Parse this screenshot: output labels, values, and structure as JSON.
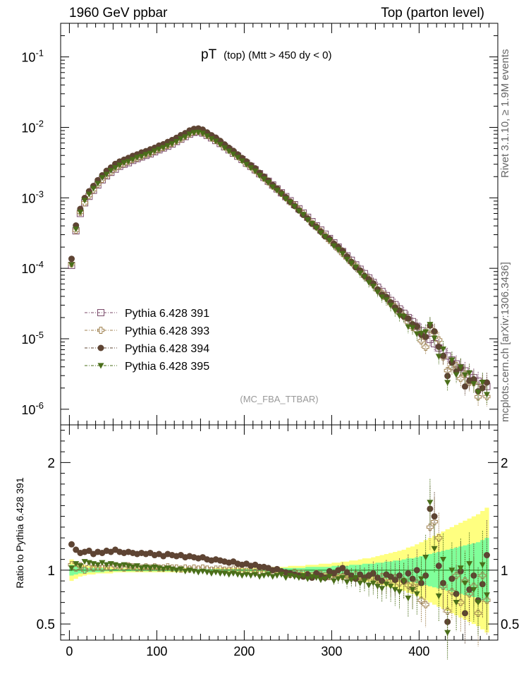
{
  "header": {
    "left": "1960 GeV ppbar",
    "right": "Top (parton level)"
  },
  "side": {
    "rivet": "Rivet 3.1.10, ≥ 1.9M events",
    "mcplots": "mcplots.cern.ch [arXiv:1306.3436]"
  },
  "chart_data": [
    {
      "type": "scatter",
      "panel": "main",
      "title_main": "pT",
      "title_sub": "(top) (Mtt > 450 dy < 0)",
      "watermark": "(MC_FBA_TTBAR)",
      "yscale": "log",
      "xlim": [
        -10,
        490
      ],
      "ylim": [
        6e-07,
        0.3
      ],
      "ytick_labels": [
        "10^-6",
        "10^-5",
        "10^-4",
        "10^-3",
        "10^-2",
        "10^-1"
      ],
      "legend_position": "bottom-left",
      "series": [
        {
          "name": "Pythia 6.428 391",
          "color": "#7a4a6a",
          "marker": "open-square"
        },
        {
          "name": "Pythia 6.428 393",
          "color": "#a08250",
          "marker": "open-cross"
        },
        {
          "name": "Pythia 6.428 394",
          "color": "#5e4433",
          "marker": "filled-circle"
        },
        {
          "name": "Pythia 6.428 395",
          "color": "#4a6e1a",
          "marker": "filled-triangle-down"
        }
      ],
      "x": [
        2.5,
        7.5,
        12.5,
        17.5,
        22.5,
        27.5,
        32.5,
        37.5,
        42.5,
        47.5,
        52.5,
        57.5,
        62.5,
        67.5,
        72.5,
        77.5,
        82.5,
        87.5,
        92.5,
        97.5,
        102.5,
        107.5,
        112.5,
        117.5,
        122.5,
        127.5,
        132.5,
        137.5,
        142.5,
        147.5,
        152.5,
        157.5,
        162.5,
        167.5,
        172.5,
        177.5,
        182.5,
        187.5,
        192.5,
        197.5,
        202.5,
        207.5,
        212.5,
        217.5,
        222.5,
        227.5,
        232.5,
        237.5,
        242.5,
        247.5,
        252.5,
        257.5,
        262.5,
        267.5,
        272.5,
        277.5,
        282.5,
        287.5,
        292.5,
        297.5,
        302.5,
        307.5,
        312.5,
        317.5,
        322.5,
        327.5,
        332.5,
        337.5,
        342.5,
        347.5,
        352.5,
        357.5,
        362.5,
        367.5,
        372.5,
        377.5,
        382.5,
        387.5,
        392.5,
        397.5,
        402.5,
        407.5,
        412.5,
        417.5,
        422.5,
        427.5,
        432.5,
        437.5,
        442.5,
        447.5,
        452.5,
        457.5,
        462.5,
        467.5,
        472.5,
        477.5
      ],
      "y_ref": [
        0.00011,
        0.00034,
        0.0006,
        0.00085,
        0.00105,
        0.00128,
        0.00152,
        0.0018,
        0.00205,
        0.0023,
        0.00255,
        0.0028,
        0.003,
        0.00315,
        0.0034,
        0.0036,
        0.0038,
        0.004,
        0.0042,
        0.0045,
        0.0048,
        0.0051,
        0.0054,
        0.0058,
        0.0063,
        0.0068,
        0.0074,
        0.008,
        0.0085,
        0.0087,
        0.0083,
        0.0077,
        0.0071,
        0.0065,
        0.0059,
        0.0053,
        0.0048,
        0.0043,
        0.0039,
        0.0035,
        0.0031,
        0.0028,
        0.0025,
        0.0022,
        0.00195,
        0.00172,
        0.00152,
        0.00134,
        0.00118,
        0.00104,
        0.00091,
        0.0008,
        0.0007,
        0.00061,
        0.00053,
        0.00046,
        0.0004,
        0.00035,
        0.000305,
        0.000265,
        0.00023,
        0.0002,
        0.000173,
        0.00015,
        0.00013,
        0.000112,
        9.7e-05,
        8.4e-05,
        7.3e-05,
        6.3e-05,
        5.4e-05,
        4.7e-05,
        4.1e-05,
        3.5e-05,
        3.05e-05,
        2.65e-05,
        2.3e-05,
        2e-05,
        1.75e-05,
        1.5e-05,
        1.3e-05,
        1.12e-05,
        9.8e-06,
        8.5e-06,
        7.4e-06,
        6.5e-06,
        5.7e-06,
        5e-06,
        4.4e-06,
        3.9e-06,
        3.5e-06,
        3.1e-06,
        2.8e-06,
        2.5e-06,
        2.3e-06,
        2.1e-06
      ],
      "comment_y": "main-panel series values = y_ref times each series' ratio"
    },
    {
      "type": "scatter",
      "panel": "ratio",
      "ylabel": "Ratio to Pythia 6.428 391",
      "xlim": [
        -10,
        490
      ],
      "ylim": [
        0.35,
        2.35
      ],
      "x_tick_labels": [
        "0",
        "100",
        "200",
        "300",
        "400"
      ],
      "y_tick_labels": [
        "0.5",
        "1",
        "2"
      ],
      "band_yellow_halfwidth": [
        0.1,
        0.08,
        0.06,
        0.05,
        0.04,
        0.04,
        0.03,
        0.03,
        0.03,
        0.03,
        0.02,
        0.02,
        0.02,
        0.02,
        0.02,
        0.02,
        0.02,
        0.02,
        0.02,
        0.02,
        0.02,
        0.02,
        0.02,
        0.02,
        0.02,
        0.02,
        0.02,
        0.01,
        0.01,
        0.01,
        0.01,
        0.01,
        0.01,
        0.02,
        0.02,
        0.02,
        0.02,
        0.02,
        0.02,
        0.02,
        0.02,
        0.02,
        0.02,
        0.02,
        0.02,
        0.03,
        0.03,
        0.03,
        0.03,
        0.03,
        0.04,
        0.04,
        0.04,
        0.04,
        0.05,
        0.05,
        0.05,
        0.06,
        0.06,
        0.06,
        0.07,
        0.07,
        0.08,
        0.08,
        0.09,
        0.09,
        0.1,
        0.11,
        0.11,
        0.12,
        0.13,
        0.14,
        0.15,
        0.16,
        0.17,
        0.18,
        0.19,
        0.21,
        0.22,
        0.24,
        0.26,
        0.28,
        0.3,
        0.32,
        0.34,
        0.36,
        0.38,
        0.4,
        0.42,
        0.44,
        0.46,
        0.48,
        0.5,
        0.52,
        0.55,
        0.58
      ],
      "band_green_halfwidth": [
        0.05,
        0.04,
        0.03,
        0.03,
        0.02,
        0.02,
        0.02,
        0.02,
        0.01,
        0.01,
        0.01,
        0.01,
        0.01,
        0.01,
        0.01,
        0.01,
        0.01,
        0.01,
        0.01,
        0.01,
        0.01,
        0.01,
        0.01,
        0.01,
        0.01,
        0.01,
        0.01,
        0.01,
        0.01,
        0.01,
        0.01,
        0.01,
        0.01,
        0.01,
        0.01,
        0.01,
        0.01,
        0.01,
        0.01,
        0.01,
        0.01,
        0.01,
        0.01,
        0.01,
        0.01,
        0.02,
        0.02,
        0.02,
        0.02,
        0.02,
        0.02,
        0.02,
        0.02,
        0.02,
        0.03,
        0.03,
        0.03,
        0.03,
        0.03,
        0.03,
        0.04,
        0.04,
        0.04,
        0.04,
        0.05,
        0.05,
        0.05,
        0.06,
        0.06,
        0.06,
        0.07,
        0.07,
        0.08,
        0.08,
        0.09,
        0.09,
        0.1,
        0.11,
        0.11,
        0.12,
        0.13,
        0.14,
        0.15,
        0.16,
        0.17,
        0.18,
        0.19,
        0.2,
        0.21,
        0.22,
        0.23,
        0.24,
        0.25,
        0.26,
        0.28,
        0.3
      ],
      "ratio_393": [
        1.05,
        1.02,
        1.04,
        1.0,
        1.03,
        1.02,
        1.03,
        1.02,
        1.03,
        1.02,
        1.04,
        1.03,
        1.02,
        1.04,
        1.03,
        1.02,
        1.02,
        1.03,
        1.02,
        1.03,
        1.02,
        1.02,
        1.03,
        1.02,
        1.02,
        1.01,
        1.02,
        1.01,
        1.02,
        1.01,
        1.02,
        1.01,
        1.0,
        1.01,
        1.01,
        1.0,
        1.0,
        1.01,
        1.0,
        1.0,
        0.99,
        0.99,
        0.98,
        0.99,
        0.98,
        0.98,
        0.97,
        0.99,
        0.98,
        0.97,
        0.96,
        0.98,
        0.97,
        0.97,
        0.96,
        0.95,
        0.97,
        0.96,
        0.95,
        0.94,
        0.96,
        0.95,
        0.94,
        0.95,
        0.93,
        0.96,
        0.94,
        0.92,
        0.95,
        0.93,
        0.91,
        0.94,
        0.92,
        0.9,
        0.93,
        0.88,
        0.9,
        0.86,
        0.83,
        0.88,
        0.72,
        0.68,
        1.4,
        1.45,
        1.3,
        0.85,
        0.62,
        0.8,
        0.95,
        0.7,
        0.9,
        0.78,
        0.85,
        0.6,
        0.95,
        0.72
      ],
      "ratio_394": [
        1.24,
        1.19,
        1.16,
        1.17,
        1.18,
        1.15,
        1.17,
        1.16,
        1.18,
        1.17,
        1.19,
        1.17,
        1.16,
        1.17,
        1.16,
        1.15,
        1.16,
        1.15,
        1.16,
        1.14,
        1.15,
        1.13,
        1.15,
        1.14,
        1.13,
        1.14,
        1.12,
        1.13,
        1.12,
        1.11,
        1.12,
        1.1,
        1.09,
        1.1,
        1.09,
        1.08,
        1.07,
        1.08,
        1.06,
        1.05,
        1.06,
        1.04,
        1.05,
        1.03,
        1.03,
        1.02,
        1.0,
        1.01,
        0.99,
        0.98,
        0.97,
        0.96,
        0.95,
        0.94,
        0.96,
        0.93,
        0.97,
        0.95,
        0.93,
        0.99,
        0.97,
        1.0,
        1.02,
        0.98,
        0.95,
        0.92,
        0.96,
        0.93,
        0.95,
        0.97,
        0.93,
        0.9,
        0.96,
        0.94,
        0.91,
        0.95,
        0.9,
        0.97,
        0.92,
        1.0,
        0.88,
        0.95,
        1.57,
        1.5,
        1.04,
        0.88,
        0.52,
        0.92,
        0.78,
        0.99,
        0.6,
        0.82,
        0.95,
        0.72,
        0.87,
        1.14
      ],
      "ratio_395": [
        1.02,
        1.06,
        1.04,
        1.08,
        1.07,
        1.06,
        1.05,
        1.07,
        1.05,
        1.06,
        1.05,
        1.04,
        1.05,
        1.04,
        1.03,
        1.04,
        1.02,
        1.03,
        1.02,
        1.03,
        1.02,
        1.01,
        1.02,
        1.01,
        1.0,
        1.01,
        0.99,
        1.0,
        0.99,
        0.98,
        0.99,
        0.98,
        0.97,
        0.98,
        0.97,
        0.97,
        0.96,
        0.97,
        0.96,
        0.95,
        0.96,
        0.95,
        0.96,
        0.94,
        0.95,
        0.96,
        0.94,
        0.95,
        0.96,
        0.93,
        0.95,
        0.94,
        0.93,
        0.95,
        0.92,
        0.94,
        0.93,
        0.91,
        0.92,
        0.94,
        0.9,
        0.92,
        0.93,
        0.89,
        0.91,
        0.93,
        0.88,
        0.9,
        0.86,
        0.88,
        0.85,
        0.83,
        0.87,
        0.85,
        0.82,
        0.8,
        0.9,
        0.74,
        0.82,
        0.78,
        0.92,
        1.12,
        1.63,
        1.2,
        0.76,
        1.1,
        0.42,
        1.0,
        0.7,
        1.02,
        0.88,
        1.06,
        0.82,
        0.7,
        1.05,
        0.77
      ]
    }
  ]
}
